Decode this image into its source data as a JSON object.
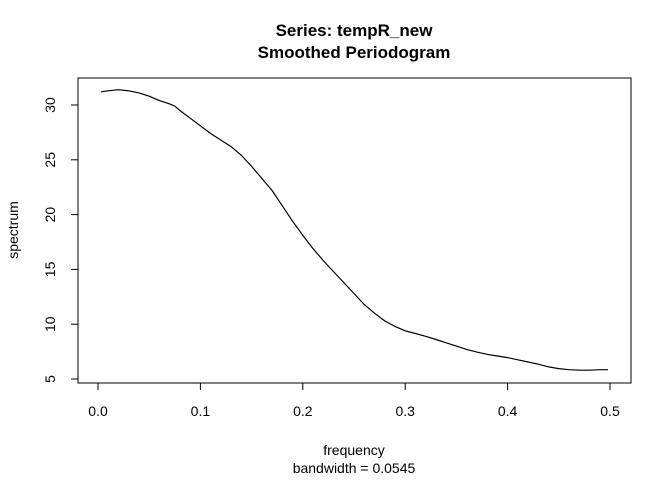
{
  "chart_data": {
    "type": "line",
    "title": "Series: tempR_new",
    "subtitle": "Smoothed Periodogram",
    "xlabel": "frequency",
    "xsublabel": "bandwidth = 0.0545",
    "ylabel": "spectrum",
    "xlim": [
      0.0,
      0.5
    ],
    "ylim": [
      5,
      30
    ],
    "xticks": [
      0.0,
      0.1,
      0.2,
      0.3,
      0.4,
      0.5
    ],
    "xtick_labels": [
      "0.0",
      "0.1",
      "0.2",
      "0.3",
      "0.4",
      "0.5"
    ],
    "yticks": [
      5,
      10,
      15,
      20,
      25,
      30
    ],
    "ytick_labels": [
      "5",
      "10",
      "15",
      "20",
      "25",
      "30"
    ],
    "grid": false,
    "line_color": "#000000",
    "series": [
      {
        "x": [
          0.003,
          0.01,
          0.02,
          0.03,
          0.04,
          0.05,
          0.055,
          0.06,
          0.07,
          0.075,
          0.08,
          0.09,
          0.1,
          0.11,
          0.12,
          0.13,
          0.14,
          0.15,
          0.16,
          0.17,
          0.18,
          0.19,
          0.2,
          0.21,
          0.22,
          0.23,
          0.24,
          0.25,
          0.26,
          0.27,
          0.28,
          0.29,
          0.3,
          0.31,
          0.32,
          0.33,
          0.34,
          0.35,
          0.36,
          0.37,
          0.38,
          0.39,
          0.4,
          0.41,
          0.42,
          0.43,
          0.44,
          0.45,
          0.46,
          0.47,
          0.48,
          0.49,
          0.498
        ],
        "y": [
          31.2,
          31.3,
          31.4,
          31.3,
          31.1,
          30.8,
          30.6,
          30.4,
          30.1,
          29.9,
          29.5,
          28.8,
          28.1,
          27.4,
          26.8,
          26.2,
          25.4,
          24.4,
          23.3,
          22.2,
          20.8,
          19.4,
          18.1,
          16.9,
          15.8,
          14.8,
          13.8,
          12.8,
          11.8,
          11.0,
          10.3,
          9.8,
          9.4,
          9.15,
          8.9,
          8.6,
          8.3,
          8.0,
          7.7,
          7.45,
          7.25,
          7.1,
          6.95,
          6.75,
          6.55,
          6.35,
          6.1,
          5.95,
          5.85,
          5.8,
          5.8,
          5.85,
          5.85
        ]
      }
    ]
  }
}
